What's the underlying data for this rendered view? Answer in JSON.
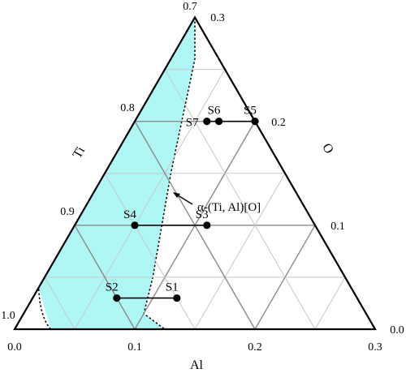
{
  "diagram": {
    "axes": {
      "bottom": {
        "label": "Al",
        "ticks": [
          "0.0",
          "0.1",
          "0.2",
          "0.3"
        ]
      },
      "left": {
        "label": "Ti",
        "ticks": [
          "0.7",
          "0.8",
          "0.9",
          "1.0"
        ]
      },
      "right": {
        "label": "O",
        "ticks": [
          "0.3",
          "0.2",
          "0.1",
          "0.0"
        ]
      }
    },
    "samples": [
      {
        "name": "S1",
        "al": 0.12,
        "o": 0.03
      },
      {
        "name": "S2",
        "al": 0.07,
        "o": 0.03
      },
      {
        "name": "S3",
        "al": 0.11,
        "o": 0.1
      },
      {
        "name": "S4",
        "al": 0.05,
        "o": 0.1
      },
      {
        "name": "S5",
        "al": 0.1,
        "o": 0.2
      },
      {
        "name": "S6",
        "al": 0.07,
        "o": 0.2
      },
      {
        "name": "S7",
        "al": 0.06,
        "o": 0.2
      }
    ],
    "tie_lines": [
      [
        "S1",
        "S2"
      ],
      [
        "S3",
        "S4"
      ],
      [
        "S5",
        "S7"
      ]
    ],
    "phase_region": {
      "label": "α-(Ti, Al)[O]",
      "fill_color": "#aef7f5",
      "boundary": [
        {
          "al": 0.0,
          "o": 0.3
        },
        {
          "al": 0.02,
          "o": 0.26
        },
        {
          "al": 0.055,
          "o": 0.15
        },
        {
          "al": 0.09,
          "o": 0.05
        },
        {
          "al": 0.1,
          "o": 0.015
        },
        {
          "al": 0.125,
          "o": 0.0
        },
        {
          "al": 0.03,
          "o": 0.0
        },
        {
          "al": 0.0,
          "o": 0.04
        }
      ]
    }
  }
}
